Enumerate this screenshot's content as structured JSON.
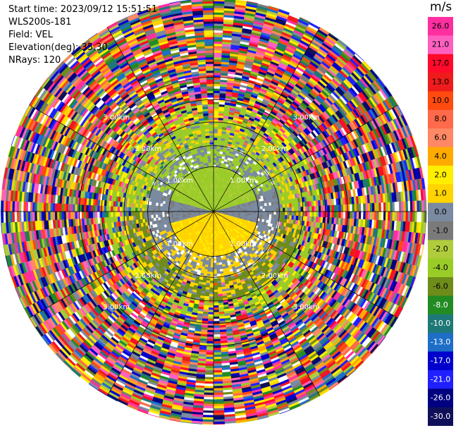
{
  "header": {
    "start_time": "Start time: 2023/09/12 15:51:51",
    "instrument": "WLS200s-181",
    "field": "Field: VEL",
    "elevation": "Elevation(deg): 35.30",
    "nrays": "NRays: 120"
  },
  "colorbar": {
    "unit": "m/s",
    "ticks": [
      "26.0",
      "21.0",
      "17.0",
      "13.0",
      "10.0",
      "8.0",
      "6.0",
      "4.0",
      "2.0",
      "1.0",
      "0.0",
      "-1.0",
      "-2.0",
      "-4.0",
      "-6.0",
      "-8.0",
      "-10.0",
      "-13.0",
      "-17.0",
      "-21.0",
      "-26.0",
      "-30.0"
    ],
    "colors": [
      "#ff2fa0",
      "#ff60c0",
      "#ff0a2a",
      "#ee1c1c",
      "#ff4a10",
      "#ff6a4a",
      "#ff8866",
      "#ffaa00",
      "#ffee00",
      "#ffd400",
      "#7a8aa0",
      "#7a7a7a",
      "#b0cc3c",
      "#9acc28",
      "#6e8c1a",
      "#228b22",
      "#1e7878",
      "#1e6ec8",
      "#0000cd",
      "#2020ff",
      "#000080",
      "#10105a"
    ]
  },
  "chart_data": {
    "type": "ppi",
    "field": "VEL",
    "units": "m/s",
    "elevation_deg": 35.3,
    "n_rays": 120,
    "range_rings_km": [
      1.0,
      2.0,
      3.0
    ],
    "range_labels": [
      "1.00km",
      "2.00km",
      "3.00km"
    ],
    "spokes_deg": [
      0,
      30,
      60,
      90,
      120,
      150,
      180,
      210,
      240,
      270,
      300,
      330
    ],
    "color_scale_min": -30.0,
    "color_scale_max": 26.0,
    "pattern": [
      {
        "region": "inner_north",
        "range_km": [
          0,
          1.0
        ],
        "approx_velocity_ms": -2.0
      },
      {
        "region": "inner_south",
        "range_km": [
          0,
          1.0
        ],
        "approx_velocity_ms": 2.0
      },
      {
        "region": "inner_east_west",
        "range_km": [
          0,
          1.0
        ],
        "approx_velocity_ms": 0.0
      },
      {
        "region": "mid_ring",
        "range_km": [
          1.0,
          2.0
        ],
        "approx_velocity_ms": -2.0
      },
      {
        "region": "outer",
        "range_km": [
          2.0,
          3.5
        ],
        "approx_velocity_ms": "noise"
      }
    ]
  }
}
